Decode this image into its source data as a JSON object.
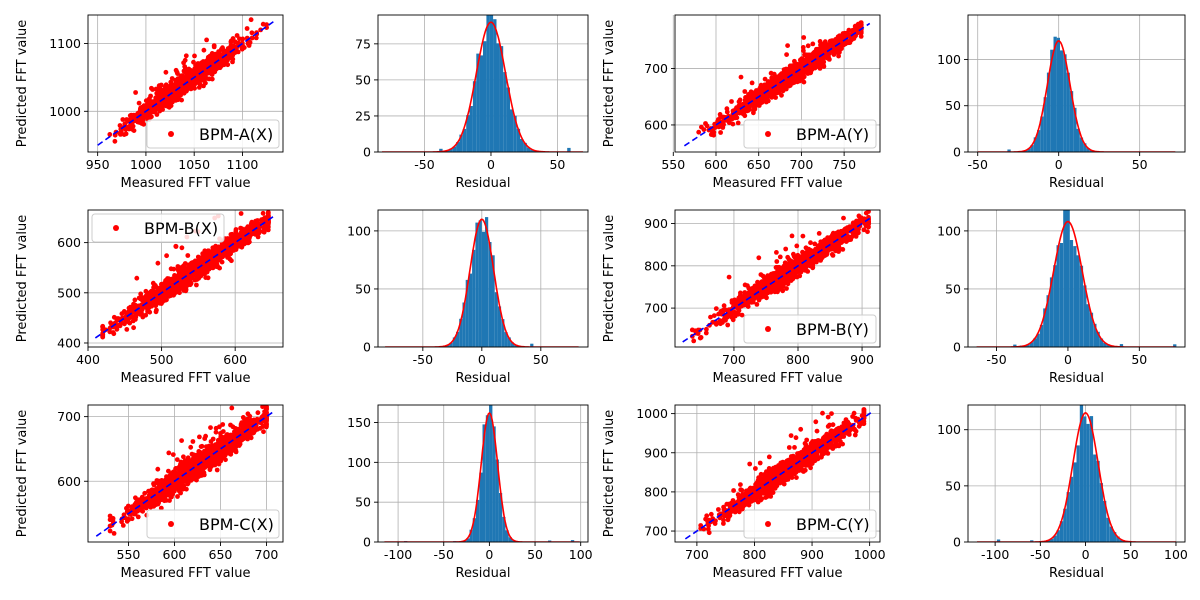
{
  "colors": {
    "points": "#ff0000",
    "fit_line": "#0000ff",
    "hist_bars": "#1f77b4",
    "gauss_curve": "#ff0000",
    "grid": "#b0b0b0"
  },
  "chart_data": [
    {
      "type": "scatter",
      "panel": "scatter-a-x",
      "legend": "BPM-A(X)",
      "legend_loc": "lower-right",
      "xlabel": "Measured FFT value",
      "ylabel": "Predicted FFT value",
      "xlim": [
        940,
        1142
      ],
      "ylim": [
        940,
        1142
      ],
      "xticks": [
        950,
        1000,
        1050,
        1100
      ],
      "yticks": [
        1000,
        1100
      ],
      "center": [
        1040,
        1040
      ],
      "spread": 28,
      "noise": 7,
      "x_range": [
        958,
        1125
      ],
      "outliers": 55,
      "line": [
        950,
        1132
      ],
      "seed": 11
    },
    {
      "type": "bar",
      "panel": "hist-a-x",
      "xlabel": "Residual",
      "xlim": [
        -85,
        73
      ],
      "ylim": [
        0,
        95
      ],
      "xticks": [
        -50,
        0,
        50
      ],
      "yticks": [
        0,
        25,
        50,
        75
      ],
      "peak": 90,
      "sigma": 11,
      "center": 0,
      "range": [
        -82,
        70
      ],
      "bins": 60,
      "seed": 21
    },
    {
      "type": "scatter",
      "panel": "scatter-a-y",
      "legend": "BPM-A(Y)",
      "legend_loc": "lower-right",
      "xlabel": "Measured FFT value",
      "ylabel": "Predicted FFT value",
      "xlim": [
        552,
        792
      ],
      "ylim": [
        552,
        795
      ],
      "xticks": [
        550,
        600,
        650,
        700,
        750
      ],
      "yticks": [
        600,
        700
      ],
      "center": [
        690,
        690
      ],
      "spread": 38,
      "noise": 8,
      "x_range": [
        568,
        770
      ],
      "outliers": 30,
      "line": [
        563,
        780
      ],
      "seed": 31
    },
    {
      "type": "bar",
      "panel": "hist-a-y",
      "xlabel": "Residual",
      "xlim": [
        -56,
        78
      ],
      "ylim": [
        0,
        148
      ],
      "xticks": [
        -50,
        0,
        50
      ],
      "yticks": [
        0,
        50,
        100
      ],
      "peak": 120,
      "sigma": 7,
      "center": 0,
      "range": [
        -50,
        72
      ],
      "bins": 60,
      "seed": 41
    },
    {
      "type": "scatter",
      "panel": "scatter-b-x",
      "legend": "BPM-B(X)",
      "legend_loc": "upper-left",
      "xlabel": "Measured FFT value",
      "ylabel": "Predicted FFT value",
      "xlim": [
        400,
        665
      ],
      "ylim": [
        392,
        665
      ],
      "xticks": [
        400,
        500,
        600
      ],
      "yticks": [
        400,
        500,
        600
      ],
      "center": [
        545,
        545
      ],
      "spread": 50,
      "noise": 10,
      "x_range": [
        420,
        645
      ],
      "outliers": 35,
      "line": [
        410,
        655
      ],
      "seed": 51
    },
    {
      "type": "bar",
      "panel": "hist-b-x",
      "xlabel": "Residual",
      "xlim": [
        -88,
        90
      ],
      "ylim": [
        0,
        118
      ],
      "xticks": [
        -50,
        0,
        50
      ],
      "yticks": [
        0,
        50,
        100
      ],
      "peak": 110,
      "sigma": 10,
      "center": 0,
      "range": [
        -82,
        82
      ],
      "bins": 60,
      "seed": 61
    },
    {
      "type": "scatter",
      "panel": "scatter-b-y",
      "legend": "BPM-B(Y)",
      "legend_loc": "lower-right",
      "xlabel": "Measured FFT value",
      "ylabel": "Predicted FFT value",
      "xlim": [
        608,
        928
      ],
      "ylim": [
        608,
        932
      ],
      "xticks": [
        700,
        800,
        900
      ],
      "yticks": [
        700,
        800,
        900
      ],
      "center": [
        790,
        790
      ],
      "spread": 55,
      "noise": 11,
      "x_range": [
        635,
        910
      ],
      "outliers": 30,
      "line": [
        620,
        912
      ],
      "seed": 71
    },
    {
      "type": "bar",
      "panel": "hist-b-y",
      "xlabel": "Residual",
      "xlim": [
        -70,
        82
      ],
      "ylim": [
        0,
        118
      ],
      "xticks": [
        -50,
        0,
        50
      ],
      "yticks": [
        0,
        50,
        100
      ],
      "peak": 108,
      "sigma": 10,
      "center": 0,
      "range": [
        -64,
        76
      ],
      "bins": 60,
      "seed": 81
    },
    {
      "type": "scatter",
      "panel": "scatter-c-x",
      "legend": "BPM-C(X)",
      "legend_loc": "lower-right",
      "xlabel": "Measured FFT value",
      "ylabel": "Predicted FFT value",
      "xlim": [
        506,
        718
      ],
      "ylim": [
        506,
        718
      ],
      "xticks": [
        550,
        600,
        650,
        700
      ],
      "yticks": [
        600,
        700
      ],
      "center": [
        630,
        630
      ],
      "spread": 38,
      "noise": 9,
      "x_range": [
        530,
        700
      ],
      "outliers": 60,
      "line": [
        515,
        708
      ],
      "seed": 91
    },
    {
      "type": "bar",
      "panel": "hist-c-x",
      "xlabel": "Residual",
      "xlim": [
        -122,
        108
      ],
      "ylim": [
        0,
        172
      ],
      "xticks": [
        -100,
        -50,
        0,
        50,
        100
      ],
      "yticks": [
        0,
        50,
        100,
        150
      ],
      "peak": 162,
      "sigma": 9,
      "center": 0,
      "range": [
        -115,
        100
      ],
      "bins": 60,
      "seed": 101
    },
    {
      "type": "scatter",
      "panel": "scatter-c-y",
      "legend": "BPM-C(Y)",
      "legend_loc": "lower-right",
      "xlabel": "Measured FFT value",
      "ylabel": "Predicted FFT value",
      "xlim": [
        662,
        1018
      ],
      "ylim": [
        672,
        1022
      ],
      "xticks": [
        700,
        800,
        900,
        1000
      ],
      "yticks": [
        700,
        800,
        900,
        1000
      ],
      "center": [
        860,
        860
      ],
      "spread": 55,
      "noise": 12,
      "x_range": [
        690,
        990
      ],
      "outliers": 45,
      "line": [
        680,
        1002
      ],
      "seed": 111
    },
    {
      "type": "bar",
      "panel": "hist-c-y",
      "xlabel": "Residual",
      "xlim": [
        -130,
        110
      ],
      "ylim": [
        0,
        122
      ],
      "xticks": [
        -100,
        -50,
        0,
        50,
        100
      ],
      "yticks": [
        0,
        50,
        100
      ],
      "peak": 115,
      "sigma": 14,
      "center": 0,
      "range": [
        -120,
        100
      ],
      "bins": 60,
      "seed": 121
    }
  ]
}
